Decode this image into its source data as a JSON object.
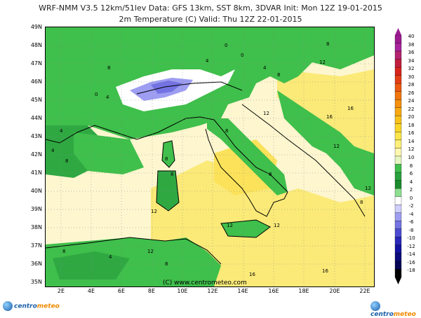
{
  "header": {
    "line1": "WRF-NMM V3.5  12km/51lev   Data: GFS 13km, SST 8km, 3DVAR   Init: Mon 12Z 19-01-2015",
    "line2": "2m Temperature (C)   Valid: Thu 12Z 22-01-2015"
  },
  "axes": {
    "lat_ticks": [
      "49N",
      "48N",
      "47N",
      "46N",
      "45N",
      "44N",
      "43N",
      "42N",
      "41N",
      "40N",
      "39N",
      "38N",
      "37N",
      "36N",
      "35N"
    ],
    "lon_ticks": [
      "2E",
      "4E",
      "6E",
      "8E",
      "10E",
      "12E",
      "14E",
      "16E",
      "18E",
      "20E",
      "22E"
    ]
  },
  "colorbar": {
    "labels": [
      "40",
      "38",
      "36",
      "34",
      "32",
      "30",
      "28",
      "26",
      "24",
      "22",
      "20",
      "18",
      "16",
      "14",
      "12",
      "10",
      "8",
      "6",
      "4",
      "2",
      "0",
      "-2",
      "-4",
      "-6",
      "-8",
      "-10",
      "-12",
      "-14",
      "-16",
      "-18"
    ],
    "colors": [
      "#9b1b8f",
      "#a8239c",
      "#b4236f",
      "#c11d3c",
      "#d8241c",
      "#e33d16",
      "#ec5a10",
      "#f1750d",
      "#f58f0d",
      "#f8a812",
      "#f9c21b",
      "#fad628",
      "#fbe64a",
      "#fcef7a",
      "#fef7b0",
      "#e6f6c0",
      "#3fbf4b",
      "#29a13d",
      "#1b8b2e",
      "#8ce08f",
      "#ffffff",
      "#d0d0ff",
      "#9d9df2",
      "#7373e3",
      "#4b4bd1",
      "#2828ba",
      "#1212a0",
      "#0b0b7c",
      "#050555",
      "#000000"
    ]
  },
  "copyright": "(C) www.centrometeo.com",
  "footer": {
    "logo_left_a": "centro",
    "logo_left_b": "meteo",
    "logo_right_a": "centro",
    "logo_right_b": "meteo"
  },
  "map_labels": [
    "0",
    "4",
    "8",
    "12",
    "16"
  ]
}
